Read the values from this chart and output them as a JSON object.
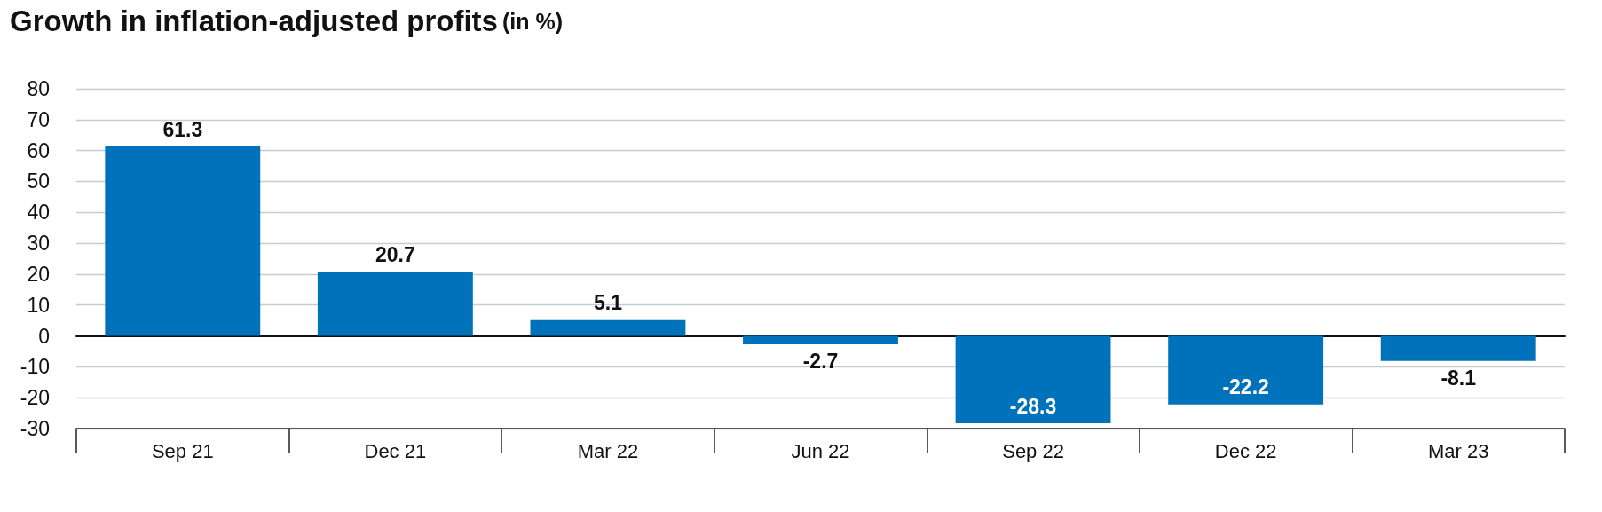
{
  "chart_data": {
    "type": "bar",
    "title": "Growth in inflation-adjusted profits",
    "subtitle": "(in %)",
    "categories": [
      "Sep 21",
      "Dec 21",
      "Mar 22",
      "Jun 22",
      "Sep 22",
      "Dec 22",
      "Mar 23"
    ],
    "values": [
      61.3,
      20.7,
      5.1,
      -2.7,
      -28.3,
      -22.2,
      -8.1
    ],
    "color": "#0072bc",
    "ylim": [
      -30,
      80
    ],
    "yticks": [
      -30,
      -20,
      -10,
      0,
      10,
      20,
      30,
      40,
      50,
      60,
      70,
      80
    ],
    "grid": "y",
    "data_labels": true
  }
}
